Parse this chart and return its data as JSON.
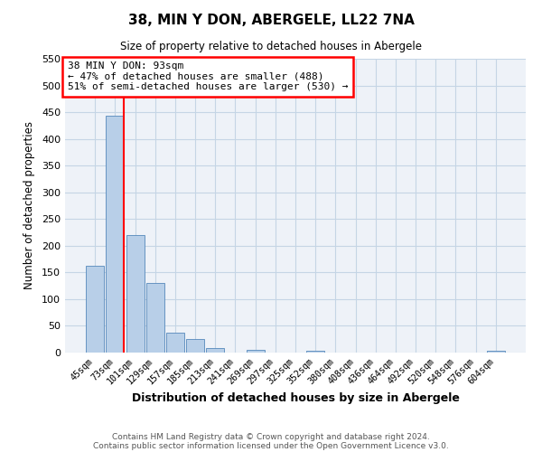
{
  "title": "38, MIN Y DON, ABERGELE, LL22 7NA",
  "subtitle": "Size of property relative to detached houses in Abergele",
  "xlabel": "Distribution of detached houses by size in Abergele",
  "ylabel": "Number of detached properties",
  "categories": [
    "45sqm",
    "73sqm",
    "101sqm",
    "129sqm",
    "157sqm",
    "185sqm",
    "213sqm",
    "241sqm",
    "269sqm",
    "297sqm",
    "325sqm",
    "352sqm",
    "380sqm",
    "408sqm",
    "436sqm",
    "464sqm",
    "492sqm",
    "520sqm",
    "548sqm",
    "576sqm",
    "604sqm"
  ],
  "values": [
    163,
    443,
    220,
    130,
    37,
    25,
    9,
    0,
    5,
    0,
    0,
    4,
    0,
    0,
    0,
    0,
    0,
    0,
    0,
    0,
    3
  ],
  "bar_color": "#b8cfe8",
  "bar_edge_color": "#5588bb",
  "grid_color": "#c5d5e5",
  "background_color": "#eef2f8",
  "ylim": [
    0,
    550
  ],
  "yticks": [
    0,
    50,
    100,
    150,
    200,
    250,
    300,
    350,
    400,
    450,
    500,
    550
  ],
  "annotation_title": "38 MIN Y DON: 93sqm",
  "annotation_line1": "← 47% of detached houses are smaller (488)",
  "annotation_line2": "51% of semi-detached houses are larger (530) →",
  "footer1": "Contains HM Land Registry data © Crown copyright and database right 2024.",
  "footer2": "Contains public sector information licensed under the Open Government Licence v3.0."
}
